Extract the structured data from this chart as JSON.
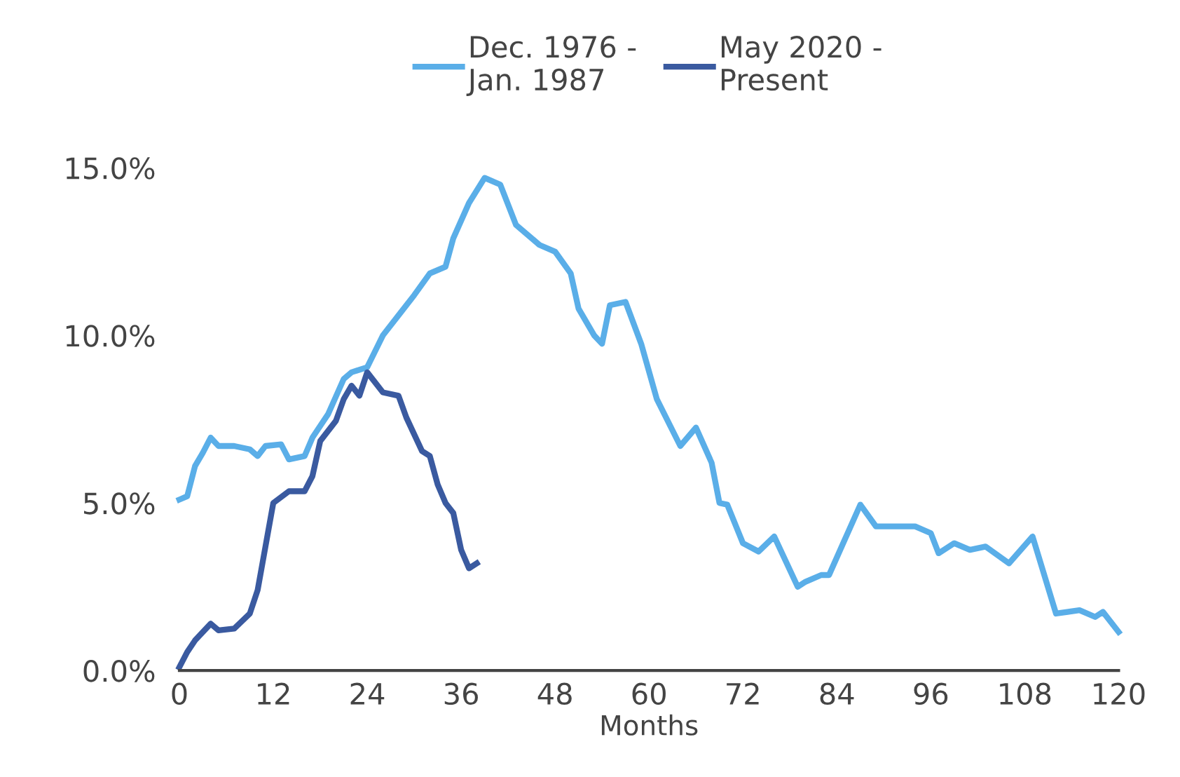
{
  "chart_data": {
    "type": "line",
    "xlabel": "Months",
    "series": [
      {
        "name": "Dec. 1976 -\nJan. 1987",
        "color": "#5aaee8",
        "x": [
          0,
          1,
          2,
          3,
          4,
          5,
          7,
          9,
          10,
          11,
          13,
          14,
          16,
          17,
          19,
          21,
          22,
          24,
          26,
          28,
          30,
          32,
          34,
          35,
          37,
          39,
          41,
          43,
          46,
          48,
          50,
          51,
          53,
          54,
          55,
          57,
          59,
          61,
          64,
          66,
          68,
          69,
          70,
          72,
          74,
          76,
          79,
          80,
          82,
          83,
          85,
          87,
          89,
          94,
          96,
          97,
          99,
          101,
          103,
          106,
          109,
          112,
          115,
          117,
          118,
          120
        ],
        "values": [
          5.1,
          5.2,
          6.1,
          6.5,
          6.95,
          6.7,
          6.7,
          6.6,
          6.4,
          6.7,
          6.75,
          6.3,
          6.4,
          6.95,
          7.65,
          8.7,
          8.9,
          9.05,
          10.0,
          10.6,
          11.2,
          11.85,
          12.05,
          12.9,
          13.95,
          14.7,
          14.5,
          13.3,
          12.7,
          12.5,
          11.85,
          10.8,
          10.0,
          9.75,
          10.9,
          11.0,
          9.75,
          8.1,
          6.7,
          7.25,
          6.2,
          5.0,
          4.95,
          3.8,
          3.55,
          4.0,
          2.5,
          2.65,
          2.85,
          2.85,
          3.9,
          4.95,
          4.3,
          4.3,
          4.1,
          3.5,
          3.8,
          3.6,
          3.7,
          3.2,
          4.0,
          1.7,
          1.8,
          1.6,
          1.75,
          1.15
        ]
      },
      {
        "name": "May 2020 -\nPresent",
        "color": "#3a5aa0",
        "x": [
          0,
          1,
          2,
          4,
          5,
          7,
          9,
          10,
          11,
          12,
          14,
          16,
          17,
          18,
          20,
          21,
          22,
          23,
          24,
          26,
          28,
          29,
          31,
          32,
          33,
          34,
          35,
          36,
          37,
          38
        ],
        "values": [
          0.1,
          0.55,
          0.9,
          1.4,
          1.2,
          1.25,
          1.7,
          2.4,
          3.7,
          5.0,
          5.35,
          5.35,
          5.8,
          6.85,
          7.45,
          8.1,
          8.5,
          8.2,
          8.9,
          8.3,
          8.2,
          7.55,
          6.55,
          6.4,
          5.55,
          5.0,
          4.7,
          3.6,
          3.05,
          3.2
        ]
      }
    ],
    "xlim": [
      0,
      120
    ],
    "xticks": [
      0,
      12,
      24,
      36,
      48,
      60,
      72,
      84,
      96,
      108,
      120
    ],
    "ylim": [
      0,
      15
    ],
    "yticks": [
      {
        "value": 0,
        "label": "0.0%"
      },
      {
        "value": 5,
        "label": "5.0%"
      },
      {
        "value": 10,
        "label": "10.0%"
      },
      {
        "value": 15,
        "label": "15.0%"
      }
    ],
    "grid": false,
    "legend": "top",
    "marker": "none",
    "line_style": "solid"
  }
}
